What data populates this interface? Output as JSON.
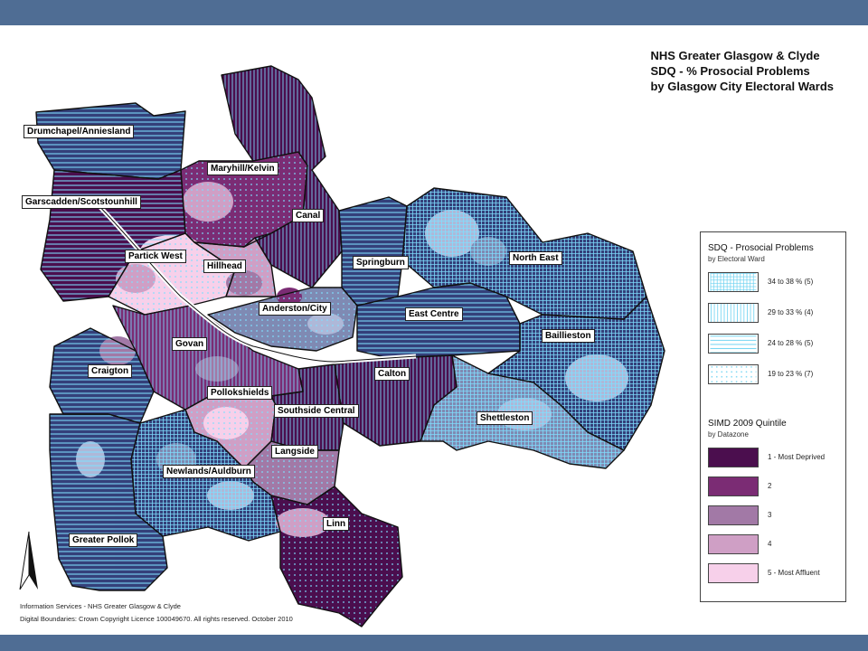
{
  "title": {
    "line1": "NHS Greater Glasgow & Clyde",
    "line2": "SDQ - % Prosocial Problems",
    "line3": "by Glasgow City Electoral Wards"
  },
  "wards": [
    {
      "id": "drumchapel",
      "label": "Drumchapel/Anniesland"
    },
    {
      "id": "maryhill",
      "label": "Maryhill/Kelvin"
    },
    {
      "id": "garscadden",
      "label": "Garscadden/Scotstounhill"
    },
    {
      "id": "canal",
      "label": "Canal"
    },
    {
      "id": "partick",
      "label": "Partick West"
    },
    {
      "id": "hillhead",
      "label": "Hillhead"
    },
    {
      "id": "springburn",
      "label": "Springburn"
    },
    {
      "id": "northeast",
      "label": "North East"
    },
    {
      "id": "anderston",
      "label": "Anderston/City"
    },
    {
      "id": "eastcentre",
      "label": "East Centre"
    },
    {
      "id": "baillieston",
      "label": "Baillieston"
    },
    {
      "id": "govan",
      "label": "Govan"
    },
    {
      "id": "craigton",
      "label": "Craigton"
    },
    {
      "id": "calton",
      "label": "Calton"
    },
    {
      "id": "pollokshields",
      "label": "Pollokshields"
    },
    {
      "id": "southside",
      "label": "Southside Central"
    },
    {
      "id": "shettleston",
      "label": "Shettleston"
    },
    {
      "id": "langside",
      "label": "Langside"
    },
    {
      "id": "newlands",
      "label": "Newlands/Auldburn"
    },
    {
      "id": "linn",
      "label": "Linn"
    },
    {
      "id": "greaterpollok",
      "label": "Greater Pollok"
    }
  ],
  "legend": {
    "sdq_title": "SDQ -  Prosocial Problems",
    "sdq_sub": "by Electoral Ward",
    "sdq_classes": [
      {
        "label": "34 to 38 %  (5)",
        "pattern": "grid"
      },
      {
        "label": "29 to 33 %  (4)",
        "pattern": "vertical"
      },
      {
        "label": "24 to 28 %  (5)",
        "pattern": "horizontal"
      },
      {
        "label": "19 to 23 %  (7)",
        "pattern": "dots"
      }
    ],
    "simd_title": "SIMD 2009 Quintile",
    "simd_sub": "by Datazone",
    "simd_classes": [
      {
        "label": "1 - Most Deprived",
        "color": "#4b0e4e"
      },
      {
        "label": "2",
        "color": "#7b2c74"
      },
      {
        "label": "3",
        "color": "#a279a6"
      },
      {
        "label": "4",
        "color": "#cf9fc5"
      },
      {
        "label": "5 - Most Affluent",
        "color": "#f7d0ea"
      }
    ]
  },
  "footer": {
    "line1": "Information Services - NHS Greater Glasgow & Clyde",
    "line2": "Digital Boundaries: Crown Copyright Licence 100049670.  All rights reserved. October 2010"
  },
  "colors": {
    "q1": "#4b0e4e",
    "q2": "#7b2c74",
    "q3": "#a279a6",
    "q4": "#cf9fc5",
    "q5": "#f7d0ea",
    "navy": "#34407a",
    "slate": "#7f8ab3",
    "pale": "#aeb8d8",
    "hatch": "#7fe0ff"
  }
}
